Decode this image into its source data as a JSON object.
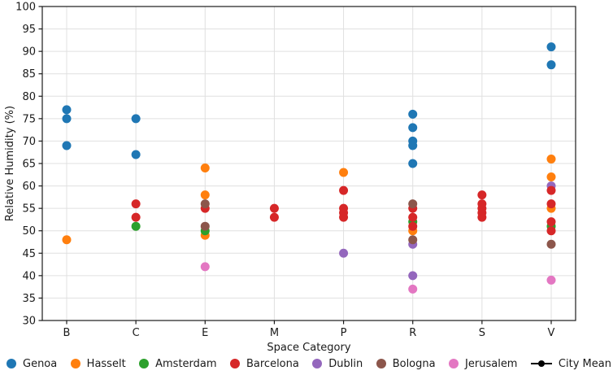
{
  "chart_data": {
    "type": "scatter",
    "title": "",
    "xlabel": "Space Category",
    "ylabel": "Relative Humidity (%)",
    "categories": [
      "B",
      "C",
      "E",
      "M",
      "P",
      "R",
      "S",
      "V"
    ],
    "ylim": [
      30,
      100
    ],
    "yticks": [
      30,
      35,
      40,
      45,
      50,
      55,
      60,
      65,
      70,
      75,
      80,
      85,
      90,
      95,
      100
    ],
    "grid": true,
    "legend_position": "bottom",
    "marker": "dot",
    "series": [
      {
        "name": "Genoa",
        "color": "#1f77b4",
        "z": 0,
        "points": {
          "B": [
            77,
            75,
            69
          ],
          "C": [
            75,
            67
          ],
          "R": [
            76,
            73,
            70,
            69,
            65
          ],
          "V": [
            91,
            87
          ]
        }
      },
      {
        "name": "Hasselt",
        "color": "#ff7f0e",
        "z": 1,
        "points": {
          "B": [
            48
          ],
          "E": [
            64,
            58,
            49
          ],
          "P": [
            63
          ],
          "R": [
            50
          ],
          "V": [
            66,
            62,
            55
          ]
        }
      },
      {
        "name": "Amsterdam",
        "color": "#2ca02c",
        "z": 2,
        "points": {
          "C": [
            51
          ],
          "E": [
            50
          ],
          "R": [
            52
          ],
          "V": [
            51
          ]
        }
      },
      {
        "name": "Barcelona",
        "color": "#d62728",
        "z": 4,
        "points": {
          "C": [
            56,
            53
          ],
          "E": [
            55
          ],
          "M": [
            55,
            53
          ],
          "P": [
            59,
            55,
            54,
            53
          ],
          "R": [
            55,
            53,
            51
          ],
          "S": [
            58,
            56,
            55,
            54,
            53
          ],
          "V": [
            59,
            56,
            52,
            50
          ]
        }
      },
      {
        "name": "Dublin",
        "color": "#9467bd",
        "z": 3,
        "points": {
          "P": [
            45
          ],
          "R": [
            47,
            40
          ],
          "V": [
            60
          ]
        }
      },
      {
        "name": "Bologna",
        "color": "#8c564b",
        "z": 5,
        "points": {
          "E": [
            56,
            51
          ],
          "R": [
            56,
            48
          ],
          "V": [
            47
          ]
        }
      },
      {
        "name": "Jerusalem",
        "color": "#e377c2",
        "z": 6,
        "points": {
          "E": [
            42
          ],
          "R": [
            37
          ],
          "V": [
            39
          ]
        }
      }
    ],
    "legend_extra_entry": {
      "label": "City Mean",
      "color": "#000000",
      "marker": "line-dot"
    },
    "colors": {
      "grid": "#e0e0e0",
      "axis": "#1a1a1a",
      "background": "#ffffff"
    }
  }
}
